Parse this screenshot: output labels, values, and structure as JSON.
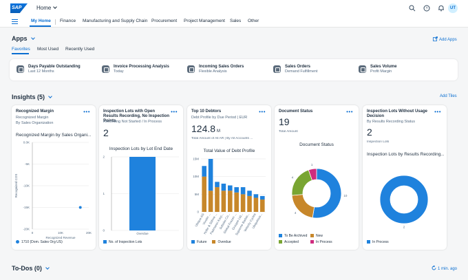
{
  "shell": {
    "logo_text": "SAP",
    "title": "Home",
    "avatar_initials": "UT"
  },
  "nav": {
    "items": [
      "My Home",
      "Finance",
      "Manufacturing and Supply Chain",
      "Procurement",
      "Project Management",
      "Sales",
      "Other"
    ],
    "active": "My Home"
  },
  "apps": {
    "title": "Apps",
    "add_label": "Add Apps",
    "tabs": [
      "Favorites",
      "Most Used",
      "Recently Used"
    ],
    "items": [
      {
        "title": "Days Payable Outstanding",
        "subtitle": "Last 12 Months"
      },
      {
        "title": "Invoice Processing Analysis",
        "subtitle": "Today"
      },
      {
        "title": "Incoming Sales Orders",
        "subtitle": "Flexible Analysis"
      },
      {
        "title": "Sales Orders",
        "subtitle": "Demand Fulfillment"
      },
      {
        "title": "Sales Volume",
        "subtitle": "Profit Margin"
      }
    ]
  },
  "insights": {
    "title": "Insights (5)",
    "add_label": "Add Tiles",
    "cards": [
      {
        "title": "Recognized Margin",
        "subtitle1": "Recognized Margin",
        "subtitle2": "By Sales Organization",
        "chart_title": "Recognized Margin by Sales Organi...",
        "legend": [
          "1710 (Dom. Sales Org US)"
        ]
      },
      {
        "title": "Inspection Lots with Open Results Recording, No Inspection Points",
        "subtitle1": "Recording Not Started / In Process",
        "kpi": "2",
        "chart_title": "Inspection Lots by Lot End Date",
        "legend": [
          "No. of Inspection Lots"
        ]
      },
      {
        "title": "Top 10 Debtors",
        "subtitle1": "Debt Profile by Due Period | EUR",
        "kpi": "124.8",
        "kpi_unit": "M",
        "kpi_caption": "Total Amount of All AR | By All Accounts ...",
        "chart_title": "Total Value of Debt Profile",
        "legend": [
          "Future",
          "Overdue"
        ]
      },
      {
        "title": "Document Status",
        "kpi": "19",
        "kpi_caption": "Total Amount",
        "chart_title": "Document Status",
        "legend": [
          "To Be Archived",
          "New",
          "Accepted",
          "In Process"
        ]
      },
      {
        "title": "Inspection Lots Without Usage Decision",
        "subtitle1": "By Results Recording Status",
        "kpi": "2",
        "kpi_caption": "Inspection Lots",
        "chart_title": "Inspection Lots by Results Recording...",
        "legend": [
          "In Process"
        ]
      }
    ]
  },
  "todos": {
    "title": "To-Dos (0)",
    "refresh_label": "1 min. ago"
  },
  "chart_data": [
    {
      "type": "scatter",
      "xlabel": "Recognized Revenue",
      "ylabel": "Recognized COS",
      "xticks": [
        "0",
        "10K",
        "20K"
      ],
      "yticks": [
        "0.0K",
        "-5K",
        "-10K",
        "-15K",
        "-20K"
      ],
      "xlim": [
        0,
        20000
      ],
      "ylim": [
        -20000,
        0
      ],
      "series": [
        {
          "name": "1710 (Dom. Sales Org US)",
          "x": [
            17000
          ],
          "y": [
            -15000
          ]
        }
      ]
    },
    {
      "type": "bar",
      "categories": [
        "Overdue"
      ],
      "values": [
        2
      ],
      "yticks": [
        "0",
        "1",
        "2"
      ],
      "ylim": [
        0,
        2
      ],
      "series": [
        {
          "name": "No. of Inspection Lots",
          "values": [
            2
          ]
        }
      ]
    },
    {
      "type": "bar",
      "stacked": true,
      "categories": [
        "Ubique AG",
        "Vivotin ...",
        "Hofer & Söhne ...",
        "Padmaniri Korp...",
        "Sobobe Co...",
        "Global Frozen ...",
        "Groupie Ltd...",
        "Supreme Barbie...",
        "Velocity Cycles",
        "Ubiquitous..."
      ],
      "yticks": [
        "0",
        "5M",
        "10M",
        "15M"
      ],
      "ylim": [
        0,
        15
      ],
      "series": [
        {
          "name": "Future",
          "values": [
            3,
            9,
            1.5,
            2,
            1.5,
            1.5,
            2,
            1.5,
            1,
            1
          ]
        },
        {
          "name": "Overdue",
          "values": [
            10,
            6,
            7,
            6,
            6,
            5.5,
            5,
            4.5,
            4,
            3.5
          ]
        }
      ]
    },
    {
      "type": "pie",
      "donut": true,
      "categories": [
        "To Be Archived",
        "New",
        "Accepted",
        "In Process"
      ],
      "values": [
        10,
        4,
        4,
        1
      ],
      "colors": [
        "#1f82dd",
        "#c7872a",
        "#79a532",
        "#cf2c7e"
      ]
    },
    {
      "type": "pie",
      "donut": true,
      "categories": [
        "In Process"
      ],
      "values": [
        2
      ],
      "colors": [
        "#1f82dd"
      ]
    }
  ],
  "colors": {
    "accent": "#0a6ed1",
    "blue": "#1f82dd",
    "gold": "#c7872a",
    "green": "#79a532",
    "pink": "#cf2c7e"
  }
}
